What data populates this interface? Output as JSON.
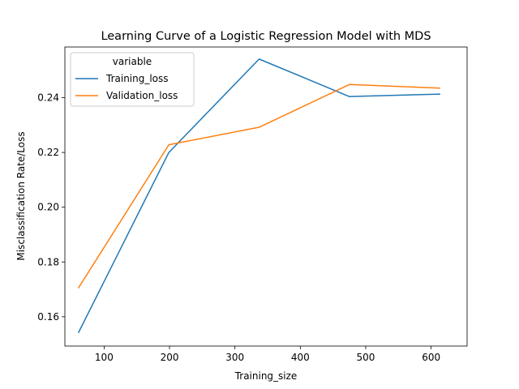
{
  "chart_data": {
    "type": "line",
    "title": "Learning Curve of a Logistic Regression Model with MDS",
    "xlabel": "Training_size",
    "ylabel": "Misclassification Rate/Loss",
    "xlim": [
      40,
      655
    ],
    "ylim": [
      0.1493,
      0.2585
    ],
    "x_ticks": [
      100,
      200,
      300,
      400,
      500,
      600
    ],
    "x_tick_labels": [
      "100",
      "200",
      "300",
      "400",
      "500",
      "600"
    ],
    "y_ticks": [
      0.16,
      0.18,
      0.2,
      0.22,
      0.24
    ],
    "y_tick_labels": [
      "0.16",
      "0.18",
      "0.20",
      "0.22",
      "0.24"
    ],
    "grid": false,
    "legend": {
      "title": "variable",
      "placement": "upper left"
    },
    "x": [
      61,
      199,
      337,
      475,
      613
    ],
    "series": [
      {
        "name": "Training_loss",
        "color": "#1f77b4",
        "values": [
          0.1543,
          0.22,
          0.2541,
          0.2404,
          0.2413
        ]
      },
      {
        "name": "Validation_loss",
        "color": "#ff7f0e",
        "values": [
          0.1706,
          0.2228,
          0.2292,
          0.2448,
          0.2435
        ]
      }
    ]
  }
}
